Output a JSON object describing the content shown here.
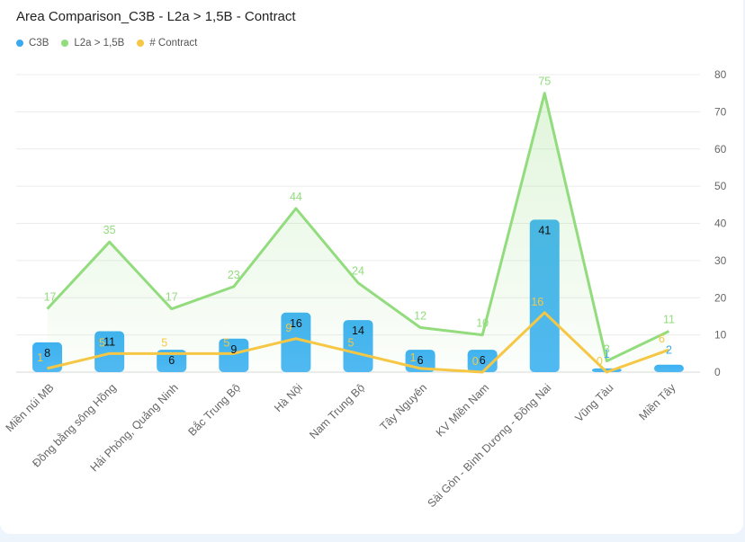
{
  "chart_data": {
    "type": "bar",
    "title": "Area Comparison_C3B - L2a > 1,5B - Contract",
    "categories": [
      "Miền núi MB",
      "Đồng bằng sông Hồng",
      "Hải Phòng, Quảng Ninh",
      "Bắc Trung Bộ",
      "Hà Nội",
      "Nam Trung Bộ",
      "Tây Nguyên",
      "KV Miền Nam",
      "Sài Gòn - Bình Dương - Đồng Nai",
      "Vũng Tàu",
      "Miền Tây"
    ],
    "series": [
      {
        "name": "C3B",
        "kind": "bar",
        "color": "#3aa9f0",
        "values": [
          8,
          11,
          6,
          9,
          16,
          14,
          6,
          6,
          41,
          1,
          2
        ]
      },
      {
        "name": "L2a > 1,5B",
        "kind": "area-line",
        "color": "#92dc7e",
        "values": [
          17,
          35,
          17,
          23,
          44,
          24,
          12,
          10,
          75,
          3,
          11
        ]
      },
      {
        "name": "# Contract",
        "kind": "line",
        "color": "#f6c744",
        "values": [
          1,
          5,
          5,
          5,
          9,
          5,
          1,
          0,
          16,
          0,
          6
        ]
      }
    ],
    "y_axis": {
      "position": "right",
      "min": 0,
      "max": 80,
      "ticks": [
        0,
        10,
        20,
        30,
        40,
        50,
        60,
        70,
        80
      ]
    },
    "grid": true,
    "legend": "top-left"
  }
}
